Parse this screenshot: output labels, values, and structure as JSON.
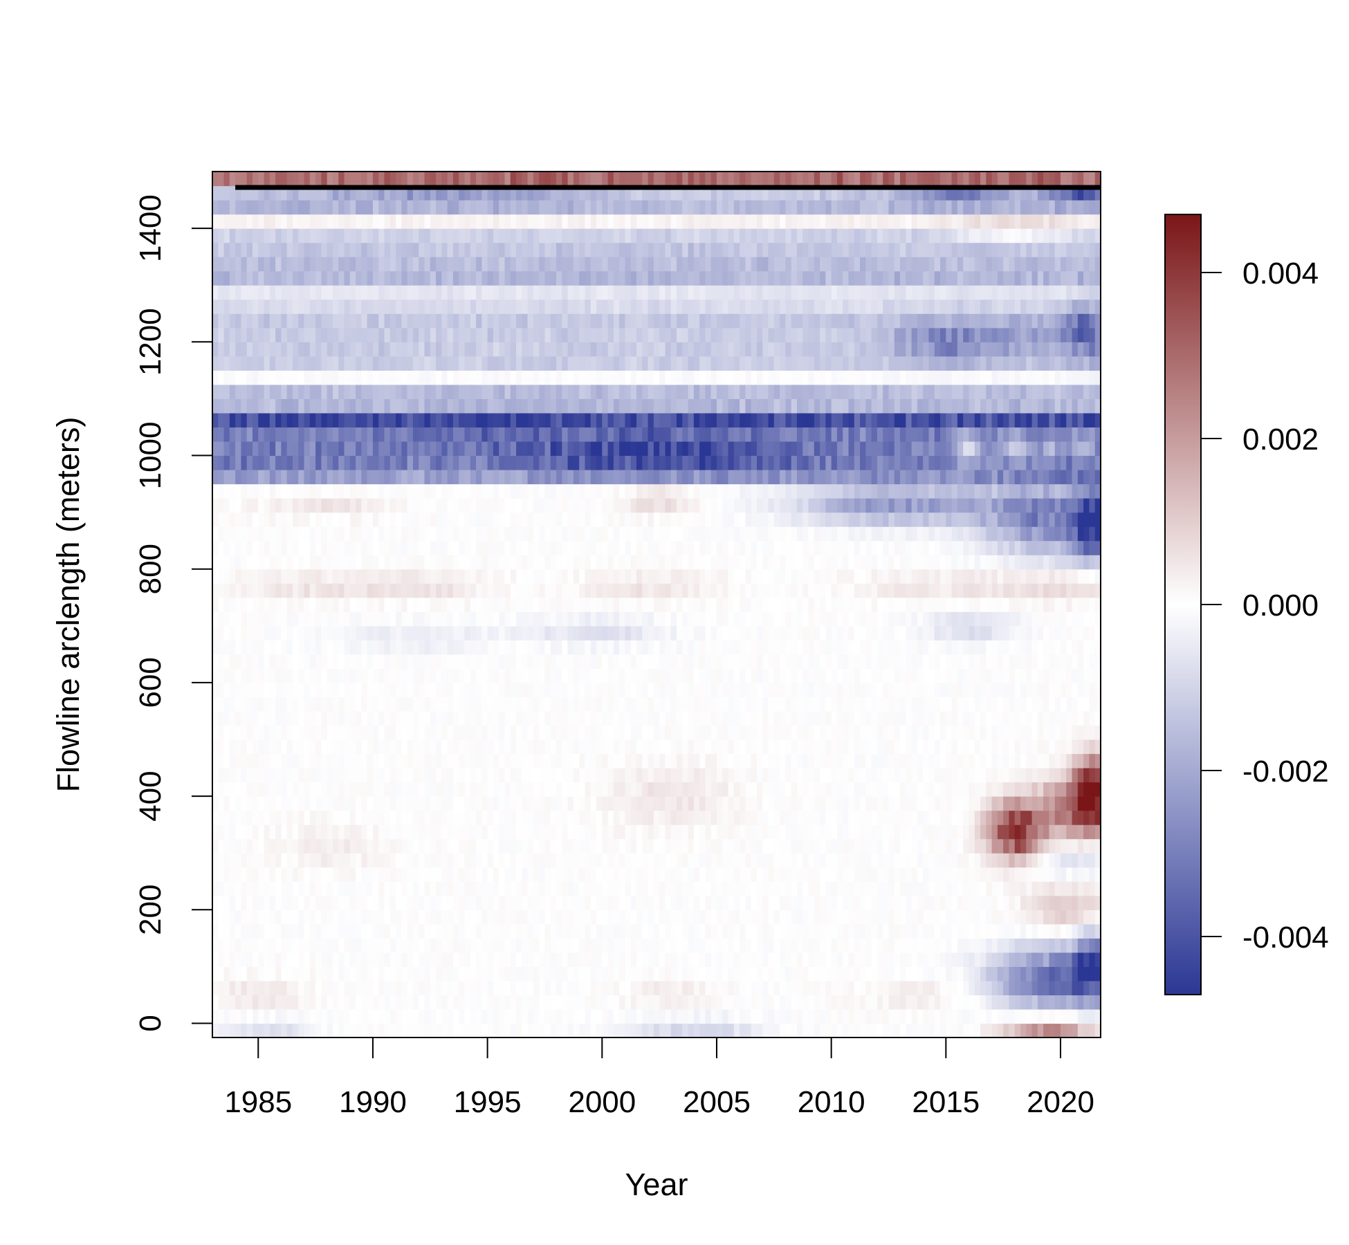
{
  "chart_data": {
    "type": "heatmap",
    "title": "",
    "xlabel": "Year",
    "ylabel": "Flowline arclength (meters)",
    "xlim": [
      1983,
      2021.75
    ],
    "ylim": [
      -25,
      1500
    ],
    "x_ticks": [
      "1985",
      "1990",
      "1995",
      "2000",
      "2005",
      "2010",
      "2015",
      "2020"
    ],
    "y_ticks": [
      "0",
      "200",
      "400",
      "600",
      "800",
      "1000",
      "1200",
      "1400"
    ],
    "colorbar": {
      "ticks": [
        "-0.004",
        "-0.002",
        "0.000",
        "0.002",
        "0.004"
      ],
      "range": [
        -0.0047,
        0.0047
      ],
      "colors": {
        "low": "#2b3794",
        "mid": "#ffffff",
        "high": "#7a1618"
      }
    },
    "x_step": 0.25,
    "y_step": 25,
    "terminus_line": {
      "x": [
        1984,
        2011.3,
        2021.75
      ],
      "y": [
        1472,
        1472,
        1472
      ]
    },
    "bands": [
      {
        "y0": 1480,
        "y1": 1500,
        "v": 0.004
      },
      {
        "y0": 1445,
        "y1": 1475,
        "v": -0.0022
      },
      {
        "y0": 1320,
        "y1": 1385,
        "v": -0.0014
      },
      {
        "y0": 1260,
        "y1": 1320,
        "v": -0.0006
      },
      {
        "y0": 1165,
        "y1": 1245,
        "v": -0.0012
      },
      {
        "y0": 1070,
        "y1": 1110,
        "v": -0.0016
      },
      {
        "y0": 970,
        "y1": 1060,
        "v": -0.003
      },
      {
        "y0": 1380,
        "y1": 1410,
        "v": 0.0003
      }
    ],
    "blobs": [
      {
        "x": 2001,
        "y": 1005,
        "rx": 4.0,
        "ry": 35,
        "v": -0.0014
      },
      {
        "x": 2006,
        "y": 1005,
        "rx": 3.0,
        "ry": 30,
        "v": -0.001
      },
      {
        "x": 2001.5,
        "y": 1458,
        "rx": 6.0,
        "ry": 15,
        "v": 0.0004
      },
      {
        "x": 1994,
        "y": 1458,
        "rx": 6.0,
        "ry": 14,
        "v": -0.0012
      },
      {
        "x": 2015.5,
        "y": 1458,
        "rx": 2.0,
        "ry": 15,
        "v": -0.0018
      },
      {
        "x": 2020.8,
        "y": 1458,
        "rx": 1.5,
        "ry": 15,
        "v": -0.0026
      },
      {
        "x": 2013,
        "y": 915,
        "rx": 4.5,
        "ry": 35,
        "v": -0.0024
      },
      {
        "x": 2019.5,
        "y": 890,
        "rx": 2.8,
        "ry": 65,
        "v": -0.0028
      },
      {
        "x": 2021.4,
        "y": 880,
        "rx": 0.9,
        "ry": 60,
        "v": -0.004
      },
      {
        "x": 2002.5,
        "y": 920,
        "rx": 1.5,
        "ry": 25,
        "v": 0.0008
      },
      {
        "x": 2018,
        "y": 340,
        "rx": 1.2,
        "ry": 50,
        "v": 0.0044
      },
      {
        "x": 2020.5,
        "y": 380,
        "rx": 1.5,
        "ry": 55,
        "v": 0.0028
      },
      {
        "x": 2021.4,
        "y": 410,
        "rx": 0.8,
        "ry": 60,
        "v": 0.0044
      },
      {
        "x": 2019.5,
        "y": 80,
        "rx": 2.5,
        "ry": 55,
        "v": -0.0034
      },
      {
        "x": 2021.4,
        "y": 100,
        "rx": 0.8,
        "ry": 60,
        "v": -0.0036
      },
      {
        "x": 2019.5,
        "y": -8,
        "rx": 2.0,
        "ry": 20,
        "v": 0.0026
      },
      {
        "x": 2020.5,
        "y": 200,
        "rx": 2.0,
        "ry": 40,
        "v": 0.0012
      },
      {
        "x": 2020.5,
        "y": 290,
        "rx": 2.0,
        "ry": 30,
        "v": -0.0008
      },
      {
        "x": 2004,
        "y": -8,
        "rx": 3.0,
        "ry": 18,
        "v": -0.001
      },
      {
        "x": 1985.5,
        "y": -8,
        "rx": 2.0,
        "ry": 18,
        "v": -0.0008
      },
      {
        "x": 2019,
        "y": 1210,
        "rx": 3.0,
        "ry": 40,
        "v": -0.0008
      },
      {
        "x": 2021.2,
        "y": 1220,
        "rx": 1.0,
        "ry": 50,
        "v": -0.002
      },
      {
        "x": 2018,
        "y": 1395,
        "rx": 2.5,
        "ry": 20,
        "v": 0.001
      },
      {
        "x": 2015,
        "y": 1200,
        "rx": 2.5,
        "ry": 35,
        "v": -0.0016
      },
      {
        "x": 2020,
        "y": 770,
        "rx": 3.0,
        "ry": 30,
        "v": 0.0007
      },
      {
        "x": 1987,
        "y": 770,
        "rx": 3.0,
        "ry": 25,
        "v": 0.0005
      },
      {
        "x": 1992,
        "y": 770,
        "rx": 3.0,
        "ry": 25,
        "v": 0.0006
      },
      {
        "x": 2002,
        "y": 770,
        "rx": 3.0,
        "ry": 25,
        "v": 0.0006
      },
      {
        "x": 2015,
        "y": 770,
        "rx": 4.0,
        "ry": 25,
        "v": 0.0005
      },
      {
        "x": 1988,
        "y": 910,
        "rx": 3.0,
        "ry": 20,
        "v": 0.0005
      },
      {
        "x": 1992,
        "y": 680,
        "rx": 4.0,
        "ry": 25,
        "v": -0.0005
      },
      {
        "x": 2000,
        "y": 690,
        "rx": 3.0,
        "ry": 25,
        "v": -0.0007
      },
      {
        "x": 2016,
        "y": 700,
        "rx": 2.0,
        "ry": 25,
        "v": -0.0009
      },
      {
        "x": 2003,
        "y": 400,
        "rx": 3.0,
        "ry": 60,
        "v": 0.0005
      },
      {
        "x": 1988,
        "y": 310,
        "rx": 2.5,
        "ry": 40,
        "v": 0.0004
      },
      {
        "x": 1985,
        "y": 50,
        "rx": 2.0,
        "ry": 30,
        "v": 0.0005
      },
      {
        "x": 2003,
        "y": 50,
        "rx": 2.0,
        "ry": 25,
        "v": 0.0004
      },
      {
        "x": 2014,
        "y": 50,
        "rx": 3.0,
        "ry": 25,
        "v": 0.0004
      },
      {
        "x": 1995,
        "y": 1035,
        "rx": 3.0,
        "ry": 25,
        "v": -0.0006
      },
      {
        "x": 2016,
        "y": 1010,
        "rx": 0.7,
        "ry": 30,
        "v": 0.0022
      },
      {
        "x": 2018,
        "y": 1010,
        "rx": 0.7,
        "ry": 30,
        "v": 0.0018
      },
      {
        "x": 2019.6,
        "y": 1010,
        "rx": 0.5,
        "ry": 30,
        "v": 0.0014
      },
      {
        "x": 2021.0,
        "y": 1010,
        "rx": 0.5,
        "ry": 30,
        "v": 0.0014
      }
    ]
  }
}
